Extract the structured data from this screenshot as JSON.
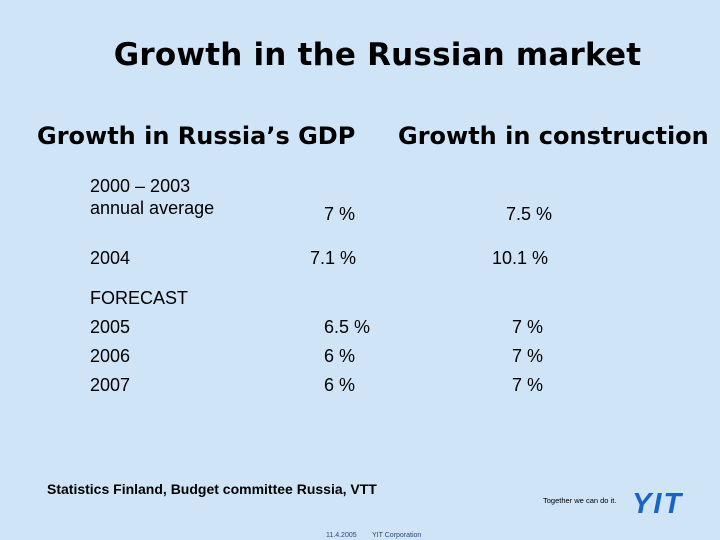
{
  "slide": {
    "title": "Growth in the Russian market",
    "gdp_header": "Growth in Russia’s GDP",
    "construction_header": "Growth in construction",
    "rows": [
      {
        "label_line1": "2000 – 2003",
        "label_line2": "annual average",
        "gdp": "7 %",
        "construction": "7.5 %"
      },
      {
        "label": "2004",
        "gdp": "7.1 %",
        "construction": "10.1 %"
      }
    ],
    "forecast_label": "FORECAST",
    "forecast": [
      {
        "year": "2005",
        "gdp": "6.5 %",
        "construction": "7 %"
      },
      {
        "year": "2006",
        "gdp": "6 %",
        "construction": "7 %"
      },
      {
        "year": "2007",
        "gdp": "6 %",
        "construction": "7 %"
      }
    ],
    "source": "Statistics Finland, Budget committee Russia, VTT"
  },
  "footer": {
    "tagline": "Together we can do it.",
    "date": "11.4.2005",
    "company": "YIT Corporation",
    "logo_text": "YIT"
  },
  "colors": {
    "background": "#cfe4f6",
    "logo_blue": "#1a63c6"
  }
}
